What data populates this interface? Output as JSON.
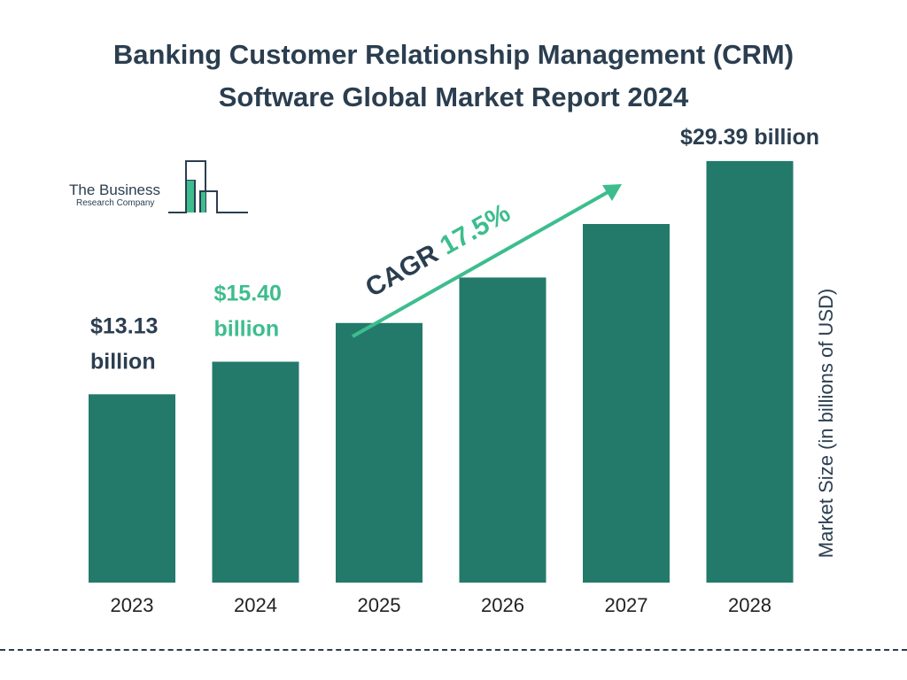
{
  "title_lines": [
    "Banking Customer Relationship Management (CRM)",
    "Software Global Market Report 2024"
  ],
  "logo": {
    "line1": "The Business",
    "line2": "Research Company"
  },
  "cagr": {
    "label": "CAGR",
    "value": "17.5%"
  },
  "colors": {
    "bar": "#237a6b",
    "accent": "#3dbd8e",
    "dark": "#2b3e50"
  },
  "chart_data": {
    "type": "bar",
    "categories": [
      "2023",
      "2024",
      "2025",
      "2026",
      "2027",
      "2028"
    ],
    "values": [
      13.13,
      15.4,
      18.1,
      21.27,
      25.0,
      29.39
    ],
    "ylabel": "Market Size (in billions of USD)",
    "data_labels": [
      {
        "index": 0,
        "lines": [
          "$13.13",
          "billion"
        ],
        "color": "dark"
      },
      {
        "index": 1,
        "lines": [
          "$15.40",
          "billion"
        ],
        "color": "accent"
      },
      {
        "index": 5,
        "lines": [
          "$29.39 billion"
        ],
        "color": "dark"
      }
    ],
    "grid": false,
    "legend": "none"
  }
}
